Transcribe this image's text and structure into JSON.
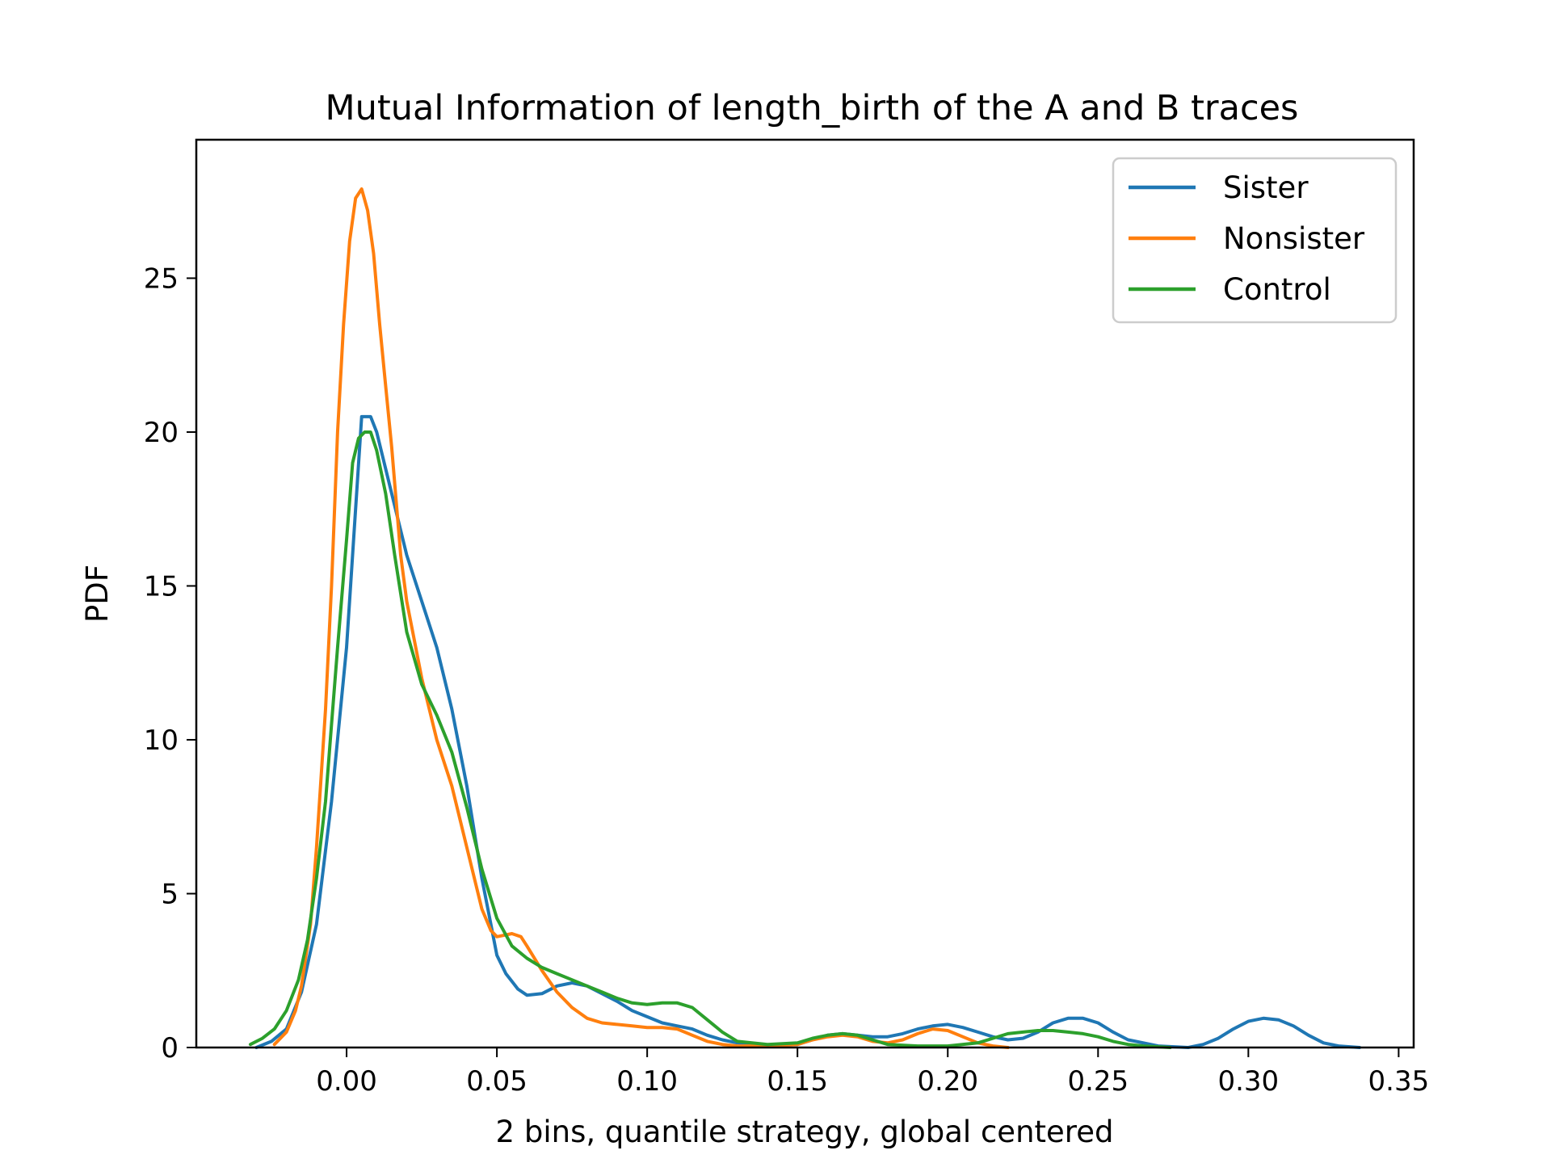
{
  "chart_data": {
    "type": "line",
    "title": "Mutual Information of length_birth of the A and B traces",
    "xlabel": "2 bins, quantile strategy, global centered",
    "ylabel": "PDF",
    "xlim": [
      -0.05,
      0.355
    ],
    "ylim": [
      0,
      29.5
    ],
    "x_ticks": [
      0.0,
      0.05,
      0.1,
      0.15,
      0.2,
      0.25,
      0.3,
      0.35
    ],
    "x_tick_labels": [
      "0.00",
      "0.05",
      "0.10",
      "0.15",
      "0.20",
      "0.25",
      "0.30",
      "0.35"
    ],
    "y_ticks": [
      0,
      5,
      10,
      15,
      20,
      25
    ],
    "y_tick_labels": [
      "0",
      "5",
      "10",
      "15",
      "20",
      "25"
    ],
    "grid": false,
    "legend_position": "top-right",
    "series": [
      {
        "name": "Sister",
        "color": "#1f77b4",
        "points": [
          [
            -0.03,
            0.0
          ],
          [
            -0.025,
            0.2
          ],
          [
            -0.02,
            0.6
          ],
          [
            -0.015,
            1.8
          ],
          [
            -0.01,
            4.0
          ],
          [
            -0.005,
            8.0
          ],
          [
            0.0,
            13.0
          ],
          [
            0.003,
            17.5
          ],
          [
            0.005,
            20.5
          ],
          [
            0.008,
            20.5
          ],
          [
            0.01,
            20.0
          ],
          [
            0.015,
            18.0
          ],
          [
            0.02,
            16.0
          ],
          [
            0.025,
            14.5
          ],
          [
            0.03,
            13.0
          ],
          [
            0.035,
            11.0
          ],
          [
            0.04,
            8.5
          ],
          [
            0.045,
            5.5
          ],
          [
            0.048,
            4.0
          ],
          [
            0.05,
            3.0
          ],
          [
            0.053,
            2.4
          ],
          [
            0.057,
            1.9
          ],
          [
            0.06,
            1.7
          ],
          [
            0.065,
            1.75
          ],
          [
            0.07,
            2.0
          ],
          [
            0.075,
            2.1
          ],
          [
            0.08,
            2.0
          ],
          [
            0.085,
            1.75
          ],
          [
            0.09,
            1.5
          ],
          [
            0.095,
            1.2
          ],
          [
            0.1,
            1.0
          ],
          [
            0.105,
            0.8
          ],
          [
            0.11,
            0.7
          ],
          [
            0.115,
            0.6
          ],
          [
            0.12,
            0.4
          ],
          [
            0.125,
            0.25
          ],
          [
            0.13,
            0.15
          ],
          [
            0.14,
            0.05
          ],
          [
            0.15,
            0.1
          ],
          [
            0.155,
            0.25
          ],
          [
            0.16,
            0.4
          ],
          [
            0.165,
            0.45
          ],
          [
            0.17,
            0.4
          ],
          [
            0.175,
            0.35
          ],
          [
            0.18,
            0.35
          ],
          [
            0.185,
            0.45
          ],
          [
            0.19,
            0.6
          ],
          [
            0.195,
            0.7
          ],
          [
            0.2,
            0.75
          ],
          [
            0.205,
            0.65
          ],
          [
            0.21,
            0.5
          ],
          [
            0.215,
            0.35
          ],
          [
            0.22,
            0.25
          ],
          [
            0.225,
            0.3
          ],
          [
            0.23,
            0.5
          ],
          [
            0.235,
            0.8
          ],
          [
            0.24,
            0.95
          ],
          [
            0.245,
            0.95
          ],
          [
            0.25,
            0.8
          ],
          [
            0.255,
            0.5
          ],
          [
            0.26,
            0.25
          ],
          [
            0.27,
            0.05
          ],
          [
            0.28,
            0.0
          ],
          [
            0.285,
            0.1
          ],
          [
            0.29,
            0.3
          ],
          [
            0.295,
            0.6
          ],
          [
            0.3,
            0.85
          ],
          [
            0.305,
            0.95
          ],
          [
            0.31,
            0.9
          ],
          [
            0.315,
            0.7
          ],
          [
            0.32,
            0.4
          ],
          [
            0.325,
            0.15
          ],
          [
            0.33,
            0.05
          ],
          [
            0.337,
            0.0
          ]
        ]
      },
      {
        "name": "Nonsister",
        "color": "#ff7f0e",
        "points": [
          [
            -0.024,
            0.1
          ],
          [
            -0.02,
            0.5
          ],
          [
            -0.017,
            1.2
          ],
          [
            -0.015,
            2.0
          ],
          [
            -0.012,
            4.0
          ],
          [
            -0.01,
            6.5
          ],
          [
            -0.007,
            11.0
          ],
          [
            -0.005,
            15.0
          ],
          [
            -0.003,
            20.0
          ],
          [
            -0.001,
            23.5
          ],
          [
            0.001,
            26.2
          ],
          [
            0.003,
            27.6
          ],
          [
            0.005,
            27.9
          ],
          [
            0.007,
            27.2
          ],
          [
            0.009,
            25.8
          ],
          [
            0.011,
            23.5
          ],
          [
            0.013,
            21.5
          ],
          [
            0.015,
            19.5
          ],
          [
            0.018,
            16.0
          ],
          [
            0.02,
            14.5
          ],
          [
            0.025,
            12.0
          ],
          [
            0.03,
            10.0
          ],
          [
            0.035,
            8.5
          ],
          [
            0.04,
            6.5
          ],
          [
            0.045,
            4.5
          ],
          [
            0.048,
            3.8
          ],
          [
            0.05,
            3.6
          ],
          [
            0.055,
            3.7
          ],
          [
            0.058,
            3.6
          ],
          [
            0.06,
            3.3
          ],
          [
            0.065,
            2.5
          ],
          [
            0.07,
            1.8
          ],
          [
            0.075,
            1.3
          ],
          [
            0.08,
            0.95
          ],
          [
            0.085,
            0.8
          ],
          [
            0.09,
            0.75
          ],
          [
            0.095,
            0.7
          ],
          [
            0.1,
            0.65
          ],
          [
            0.105,
            0.65
          ],
          [
            0.11,
            0.6
          ],
          [
            0.115,
            0.4
          ],
          [
            0.12,
            0.2
          ],
          [
            0.125,
            0.1
          ],
          [
            0.13,
            0.05
          ],
          [
            0.14,
            0.05
          ],
          [
            0.15,
            0.1
          ],
          [
            0.155,
            0.25
          ],
          [
            0.16,
            0.35
          ],
          [
            0.165,
            0.4
          ],
          [
            0.17,
            0.35
          ],
          [
            0.175,
            0.2
          ],
          [
            0.18,
            0.15
          ],
          [
            0.185,
            0.25
          ],
          [
            0.19,
            0.45
          ],
          [
            0.195,
            0.6
          ],
          [
            0.2,
            0.55
          ],
          [
            0.205,
            0.35
          ],
          [
            0.21,
            0.15
          ],
          [
            0.215,
            0.05
          ],
          [
            0.22,
            0.0
          ]
        ]
      },
      {
        "name": "Control",
        "color": "#2ca02c",
        "points": [
          [
            -0.032,
            0.1
          ],
          [
            -0.028,
            0.3
          ],
          [
            -0.024,
            0.6
          ],
          [
            -0.02,
            1.2
          ],
          [
            -0.016,
            2.2
          ],
          [
            -0.013,
            3.5
          ],
          [
            -0.01,
            5.5
          ],
          [
            -0.007,
            8.0
          ],
          [
            -0.005,
            10.5
          ],
          [
            -0.003,
            13.0
          ],
          [
            0.0,
            16.5
          ],
          [
            0.002,
            19.0
          ],
          [
            0.004,
            19.8
          ],
          [
            0.006,
            20.0
          ],
          [
            0.008,
            20.0
          ],
          [
            0.01,
            19.4
          ],
          [
            0.013,
            18.0
          ],
          [
            0.016,
            16.0
          ],
          [
            0.02,
            13.5
          ],
          [
            0.025,
            11.8
          ],
          [
            0.03,
            10.8
          ],
          [
            0.035,
            9.6
          ],
          [
            0.04,
            7.8
          ],
          [
            0.045,
            5.8
          ],
          [
            0.05,
            4.2
          ],
          [
            0.055,
            3.3
          ],
          [
            0.06,
            2.9
          ],
          [
            0.065,
            2.6
          ],
          [
            0.07,
            2.4
          ],
          [
            0.075,
            2.2
          ],
          [
            0.08,
            2.0
          ],
          [
            0.085,
            1.8
          ],
          [
            0.09,
            1.6
          ],
          [
            0.095,
            1.45
          ],
          [
            0.1,
            1.4
          ],
          [
            0.105,
            1.45
          ],
          [
            0.11,
            1.45
          ],
          [
            0.115,
            1.3
          ],
          [
            0.12,
            0.9
          ],
          [
            0.125,
            0.5
          ],
          [
            0.13,
            0.2
          ],
          [
            0.14,
            0.1
          ],
          [
            0.15,
            0.15
          ],
          [
            0.155,
            0.3
          ],
          [
            0.16,
            0.4
          ],
          [
            0.165,
            0.45
          ],
          [
            0.17,
            0.4
          ],
          [
            0.175,
            0.25
          ],
          [
            0.18,
            0.1
          ],
          [
            0.19,
            0.05
          ],
          [
            0.2,
            0.05
          ],
          [
            0.21,
            0.15
          ],
          [
            0.215,
            0.3
          ],
          [
            0.22,
            0.45
          ],
          [
            0.225,
            0.5
          ],
          [
            0.23,
            0.55
          ],
          [
            0.235,
            0.55
          ],
          [
            0.24,
            0.5
          ],
          [
            0.245,
            0.45
          ],
          [
            0.25,
            0.35
          ],
          [
            0.255,
            0.2
          ],
          [
            0.26,
            0.1
          ],
          [
            0.265,
            0.05
          ],
          [
            0.274,
            0.0
          ]
        ]
      }
    ]
  }
}
